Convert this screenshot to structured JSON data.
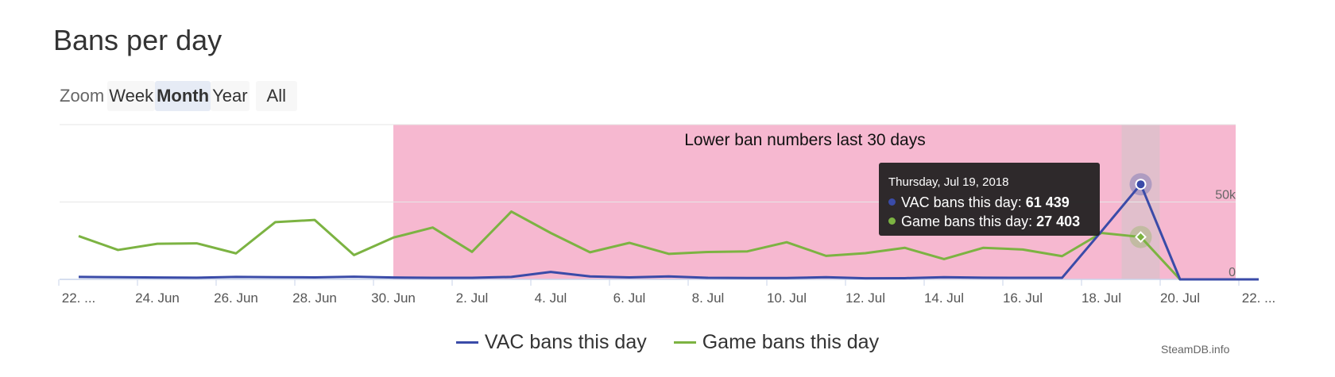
{
  "title": "Bans per day",
  "zoom": {
    "label": "Zoom",
    "buttons": [
      "Week",
      "Month",
      "Year",
      "All"
    ],
    "active": "Month"
  },
  "credit": "SteamDB.info",
  "colors": {
    "vac": "#3a4ba8",
    "game": "#7cb342",
    "band": "#f6b8d0",
    "grid": "#e6e6e6",
    "axis": "#c8d3ea"
  },
  "tooltip": {
    "date": "Thursday, Jul 19, 2018",
    "vac_label": "VAC bans this day: ",
    "vac_value": "61 439",
    "game_label": "Game bans this day: ",
    "game_value": "27 403"
  },
  "chart_data": {
    "type": "line",
    "x": [
      "2018-06-22",
      "2018-06-23",
      "2018-06-24",
      "2018-06-25",
      "2018-06-26",
      "2018-06-27",
      "2018-06-28",
      "2018-06-29",
      "2018-06-30",
      "2018-07-01",
      "2018-07-02",
      "2018-07-03",
      "2018-07-04",
      "2018-07-05",
      "2018-07-06",
      "2018-07-07",
      "2018-07-08",
      "2018-07-09",
      "2018-07-10",
      "2018-07-11",
      "2018-07-12",
      "2018-07-13",
      "2018-07-14",
      "2018-07-15",
      "2018-07-16",
      "2018-07-17",
      "2018-07-18",
      "2018-07-19",
      "2018-07-20",
      "2018-07-21",
      "2018-07-22"
    ],
    "x_tick_labels": [
      "22. ...",
      "24. Jun",
      "26. Jun",
      "28. Jun",
      "30. Jun",
      "2. Jul",
      "4. Jul",
      "6. Jul",
      "8. Jul",
      "10. Jul",
      "12. Jul",
      "14. Jul",
      "16. Jul",
      "18. Jul",
      "20. Jul",
      "22. ..."
    ],
    "y_tick_labels": [
      "0",
      "50k"
    ],
    "ylim": [
      0,
      100000
    ],
    "series": [
      {
        "name": "VAC bans this day",
        "values": [
          1600,
          1400,
          1200,
          1100,
          1600,
          1400,
          1300,
          1700,
          1200,
          1000,
          1000,
          1600,
          4800,
          1900,
          1300,
          1900,
          1000,
          900,
          900,
          1400,
          700,
          800,
          1400,
          1100,
          1000,
          1000,
          31000,
          61439,
          0,
          0,
          0
        ]
      },
      {
        "name": "Game bans this day",
        "values": [
          28000,
          19000,
          23000,
          23300,
          16800,
          37000,
          38400,
          15700,
          27000,
          33500,
          17800,
          43800,
          30000,
          17500,
          23600,
          16500,
          17700,
          18100,
          24000,
          15200,
          16900,
          20400,
          13100,
          20400,
          19300,
          15000,
          30000,
          27403,
          0,
          0,
          0
        ]
      }
    ],
    "plot_band": {
      "from": "2018-06-30",
      "to": "2018-07-22",
      "label": "Lower ban numbers last 30 days"
    },
    "crosshair_date": "2018-07-19",
    "grid": true,
    "legend": "bottom-center"
  }
}
